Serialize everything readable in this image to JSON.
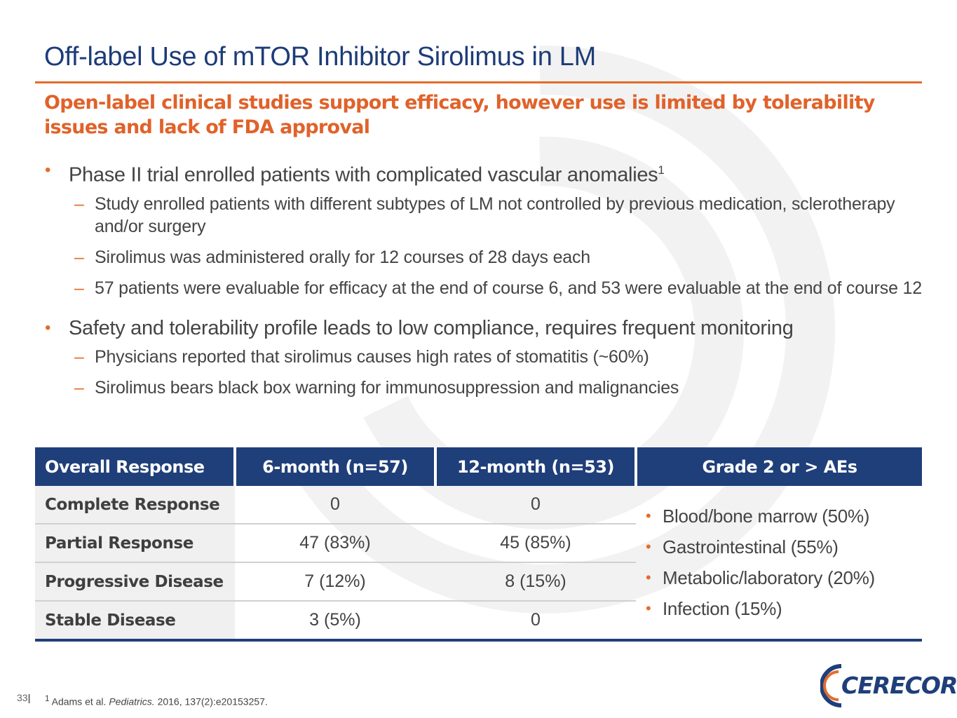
{
  "slide": {
    "title": "Off-label Use of mTOR Inhibitor Sirolimus in LM",
    "subtitle": "Open-label clinical studies support efficacy, however use is limited by tolerability issues and lack of FDA approval",
    "page_number": "33",
    "bullets": [
      {
        "text": "Phase II trial enrolled patients with complicated vascular anomalies",
        "sup": "1",
        "sub": [
          "Study enrolled patients with different subtypes of LM not controlled by previous medication, sclerotherapy and/or surgery",
          "Sirolimus was administered orally for 12 courses of 28 days each",
          "57 patients were evaluable for efficacy at the end of course 6, and 53 were evaluable at the end of course 12"
        ]
      },
      {
        "text": "Safety and tolerability profile leads to low compliance, requires frequent monitoring",
        "sub": [
          "Physicians reported that sirolimus causes high rates of stomatitis (~60%)",
          "Sirolimus bears black box warning for immunosuppression and malignancies"
        ]
      }
    ],
    "table": {
      "headers": [
        "Overall Response",
        "6-month (n=57)",
        "12-month (n=53)",
        "Grade 2 or > AEs"
      ],
      "rows": [
        {
          "label": "Complete Response",
          "m6": "0",
          "m12": "0"
        },
        {
          "label": "Partial Response",
          "m6": "47 (83%)",
          "m12": "45 (85%)"
        },
        {
          "label": "Progressive Disease",
          "m6": "7 (12%)",
          "m12": "8 (15%)"
        },
        {
          "label": "Stable Disease",
          "m6": "3 (5%)",
          "m12": "0"
        }
      ],
      "aes": [
        "Blood/bone marrow (50%)",
        "Gastrointestinal (55%)",
        "Metabolic/laboratory (20%)",
        "Infection (15%)"
      ]
    },
    "footnote": {
      "sup": "1",
      "authors": "Adams et al.",
      "journal": "Pediatrics.",
      "citation": "2016, 137(2):e20153257."
    },
    "logo_text": "CERECOR",
    "colors": {
      "title": "#1d3c78",
      "accent": "#e36c2b",
      "table_header": "#1f3f7a"
    }
  }
}
